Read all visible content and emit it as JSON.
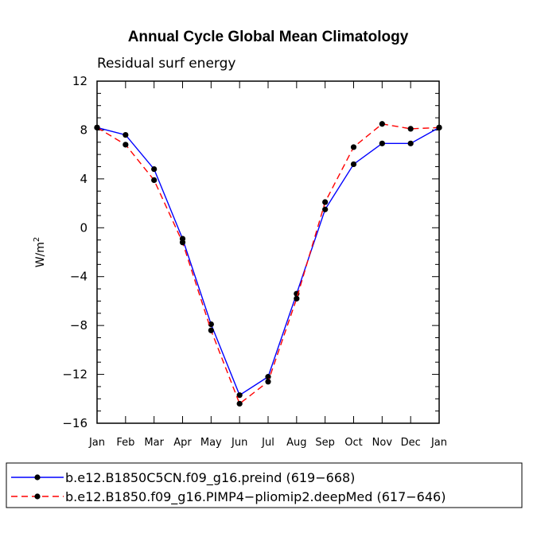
{
  "chart_data": {
    "type": "line",
    "title": "Annual Cycle Global Mean Climatology",
    "subtitle": "Residual surf energy",
    "xlabel": "",
    "ylabel": "W/m",
    "ylabel_superscript": "2",
    "categories": [
      "Jan",
      "Feb",
      "Mar",
      "Apr",
      "May",
      "Jun",
      "Jul",
      "Aug",
      "Sep",
      "Oct",
      "Nov",
      "Dec",
      "Jan"
    ],
    "ylim": [
      -16,
      12
    ],
    "yticks": [
      "12",
      "8",
      "4",
      "0",
      "−4",
      "−8",
      "−12",
      "−16"
    ],
    "series": [
      {
        "name": "b.e12.B1850C5CN.f09_g16.preind (619−668)",
        "color": "#0000ff",
        "dash": "solid",
        "values": [
          8.2,
          7.6,
          4.8,
          -0.9,
          -7.9,
          -13.7,
          -12.2,
          -5.4,
          1.5,
          5.2,
          6.9,
          6.9,
          8.2
        ]
      },
      {
        "name": "b.e12.B1850.f09_g16.PIMP4−pliomip2.deepMed (617−646)",
        "color": "#ff0000",
        "dash": "dashed",
        "values": [
          8.2,
          6.8,
          3.9,
          -1.2,
          -8.4,
          -14.4,
          -12.6,
          -5.8,
          2.1,
          6.6,
          8.5,
          8.1,
          8.2
        ]
      }
    ]
  }
}
